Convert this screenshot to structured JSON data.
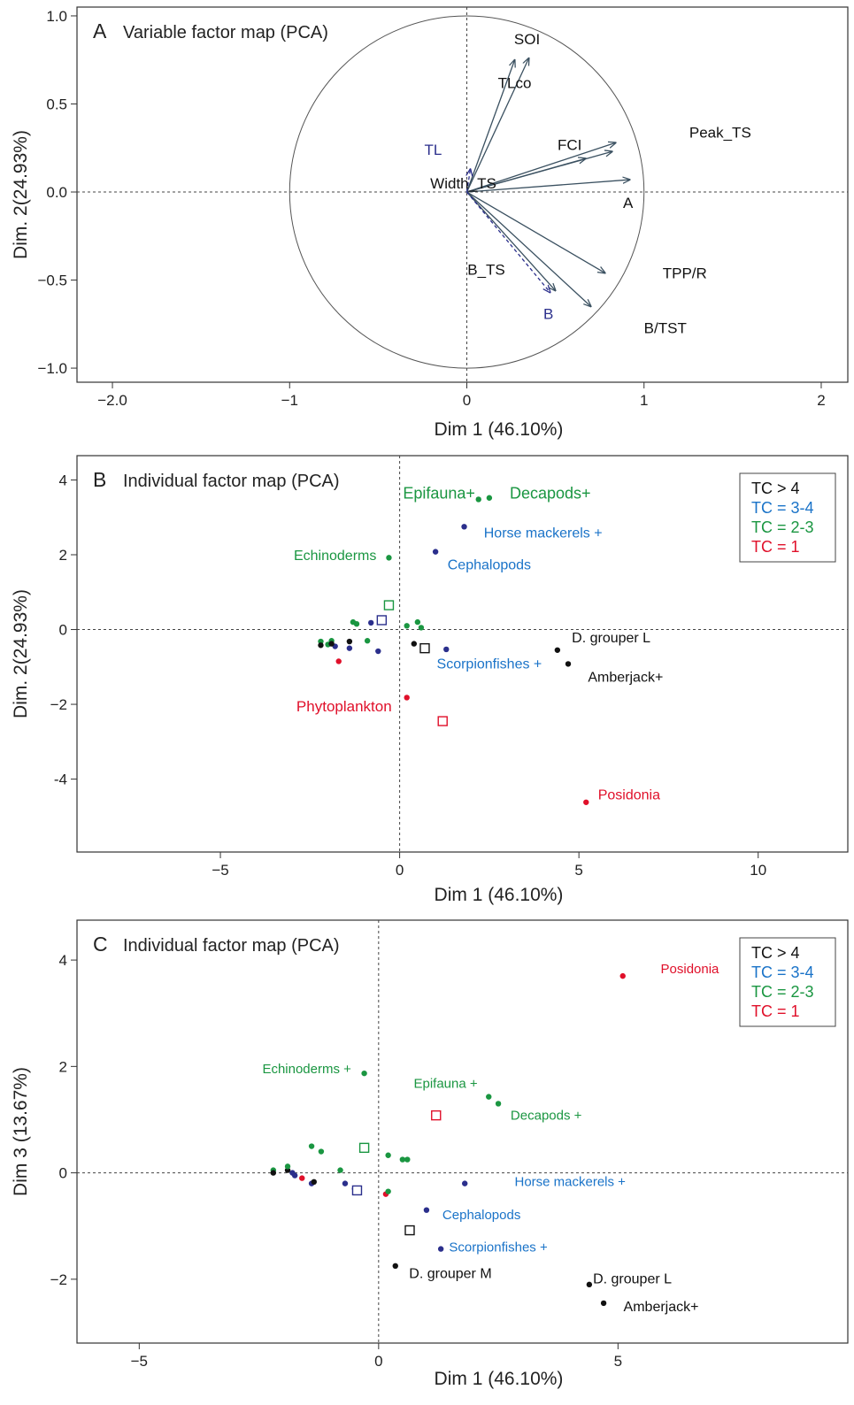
{
  "colors": {
    "tc_gt4": "#111111",
    "tc_3_4": "#1a73c8",
    "tc_2_3": "#1a9641",
    "tc_1": "#e0102a",
    "navy": "#2b2f8c",
    "arrow": "#3a5060"
  },
  "chart_data": [
    {
      "panel": "A",
      "type": "scatter",
      "title": "Variable factor map (PCA)",
      "xlabel": "Dim 1 (46.10%)",
      "ylabel": "Dim. 2(24.93%)",
      "xlim": [
        -2.2,
        2.15
      ],
      "ylim": [
        -1.08,
        1.05
      ],
      "xticks": [
        {
          "v": -2,
          "t": "−2.0"
        },
        {
          "v": -1,
          "t": "−1"
        },
        {
          "v": 0,
          "t": "0"
        },
        {
          "v": 1,
          "t": "1"
        },
        {
          "v": 2,
          "t": "2"
        }
      ],
      "yticks": [
        {
          "v": -1,
          "t": "−1.0"
        },
        {
          "v": -0.5,
          "t": "−0.5"
        },
        {
          "v": 0,
          "t": "0.0"
        },
        {
          "v": 0.5,
          "t": "0.5"
        },
        {
          "v": 1,
          "t": "1.0"
        }
      ],
      "circle_radius": 1,
      "arrows": [
        {
          "x": 0.27,
          "y": 0.75,
          "c": "arrow"
        },
        {
          "x": 0.35,
          "y": 0.76,
          "c": "arrow"
        },
        {
          "x": 0.84,
          "y": 0.28,
          "c": "arrow"
        },
        {
          "x": 0.82,
          "y": 0.23,
          "c": "arrow"
        },
        {
          "x": 0.67,
          "y": 0.19,
          "c": "arrow"
        },
        {
          "x": 0.92,
          "y": 0.07,
          "c": "arrow"
        },
        {
          "x": 0.78,
          "y": -0.46,
          "c": "arrow"
        },
        {
          "x": 0.7,
          "y": -0.65,
          "c": "arrow"
        },
        {
          "x": 0.5,
          "y": -0.56,
          "c": "arrow"
        },
        {
          "x": 0.47,
          "y": -0.57,
          "c": "navy",
          "dashed": true
        },
        {
          "x": 0.02,
          "y": 0.13,
          "c": "navy",
          "dashed": true
        }
      ],
      "labels": [
        {
          "text": "SOI",
          "x": 0.34,
          "y": 0.87,
          "c": "tc_gt4"
        },
        {
          "text": "TLco",
          "x": 0.27,
          "y": 0.62,
          "c": "tc_gt4"
        },
        {
          "text": "FCI",
          "x": 0.58,
          "y": 0.27,
          "c": "tc_gt4"
        },
        {
          "text": "Peak_TS",
          "x": 1.43,
          "y": 0.34,
          "c": "tc_gt4"
        },
        {
          "text": "TL",
          "x": -0.19,
          "y": 0.24,
          "c": "navy"
        },
        {
          "text": "Width_TS",
          "x": -0.02,
          "y": 0.05,
          "c": "tc_gt4"
        },
        {
          "text": "A",
          "x": 0.91,
          "y": -0.06,
          "c": "tc_gt4"
        },
        {
          "text": "B_TS",
          "x": 0.11,
          "y": -0.44,
          "c": "tc_gt4"
        },
        {
          "text": "TPP/R",
          "x": 1.23,
          "y": -0.46,
          "c": "tc_gt4"
        },
        {
          "text": "B",
          "x": 0.46,
          "y": -0.69,
          "c": "navy"
        },
        {
          "text": "B/TST",
          "x": 1.12,
          "y": -0.77,
          "c": "tc_gt4"
        }
      ]
    },
    {
      "panel": "B",
      "type": "scatter",
      "title": "Individual factor map (PCA)",
      "xlabel": "Dim 1 (46.10%)",
      "ylabel": "Dim. 2(24.93%)",
      "xlim": [
        -9.0,
        12.5
      ],
      "ylim": [
        -5.95,
        4.65
      ],
      "xticks": [
        {
          "v": -5,
          "t": "−5"
        },
        {
          "v": 0,
          "t": "0"
        },
        {
          "v": 5,
          "t": "5"
        },
        {
          "v": 10,
          "t": "10"
        }
      ],
      "yticks": [
        {
          "v": -4,
          "t": "-4"
        },
        {
          "v": -2,
          "t": "−2"
        },
        {
          "v": 0,
          "t": "0"
        },
        {
          "v": 2,
          "t": "2"
        },
        {
          "v": 4,
          "t": "4"
        }
      ],
      "legend": [
        "TC > 4",
        "TC = 3-4",
        "TC = 2-3",
        "TC = 1"
      ],
      "points": [
        {
          "x": 2.2,
          "y": 3.48,
          "c": "tc_2_3"
        },
        {
          "x": 2.5,
          "y": 3.52,
          "c": "tc_2_3"
        },
        {
          "x": 1.8,
          "y": 2.75,
          "c": "navy"
        },
        {
          "x": 1.0,
          "y": 2.08,
          "c": "navy"
        },
        {
          "x": -0.3,
          "y": 1.92,
          "c": "tc_2_3"
        },
        {
          "x": -2.2,
          "y": -0.32,
          "c": "tc_2_3"
        },
        {
          "x": -1.9,
          "y": -0.3,
          "c": "tc_2_3"
        },
        {
          "x": -1.8,
          "y": -0.45,
          "c": "navy"
        },
        {
          "x": -2.0,
          "y": -0.4,
          "c": "tc_2_3"
        },
        {
          "x": -2.2,
          "y": -0.42,
          "c": "tc_gt4"
        },
        {
          "x": -1.9,
          "y": -0.38,
          "c": "tc_gt4"
        },
        {
          "x": -1.4,
          "y": -0.32,
          "c": "tc_gt4"
        },
        {
          "x": -1.4,
          "y": -0.5,
          "c": "navy"
        },
        {
          "x": -1.3,
          "y": 0.2,
          "c": "tc_2_3"
        },
        {
          "x": -1.2,
          "y": 0.15,
          "c": "tc_2_3"
        },
        {
          "x": -0.8,
          "y": 0.18,
          "c": "navy"
        },
        {
          "x": -0.9,
          "y": -0.3,
          "c": "tc_2_3"
        },
        {
          "x": -0.6,
          "y": -0.58,
          "c": "navy"
        },
        {
          "x": -1.7,
          "y": -0.85,
          "c": "tc_1"
        },
        {
          "x": 0.2,
          "y": 0.1,
          "c": "tc_2_3"
        },
        {
          "x": 0.5,
          "y": 0.2,
          "c": "tc_2_3"
        },
        {
          "x": 0.6,
          "y": 0.05,
          "c": "tc_2_3"
        },
        {
          "x": 0.4,
          "y": -0.38,
          "c": "tc_gt4"
        },
        {
          "x": 1.3,
          "y": -0.53,
          "c": "navy"
        },
        {
          "x": 4.4,
          "y": -0.55,
          "c": "tc_gt4"
        },
        {
          "x": 4.7,
          "y": -0.92,
          "c": "tc_gt4"
        },
        {
          "x": 0.2,
          "y": -1.82,
          "c": "tc_1"
        },
        {
          "x": 5.2,
          "y": -4.62,
          "c": "tc_1"
        }
      ],
      "squares": [
        {
          "x": -0.3,
          "y": 0.65,
          "c": "tc_2_3"
        },
        {
          "x": -0.5,
          "y": 0.25,
          "c": "navy"
        },
        {
          "x": 0.7,
          "y": -0.5,
          "c": "tc_gt4"
        },
        {
          "x": 1.2,
          "y": -2.45,
          "c": "tc_1"
        }
      ],
      "labels": [
        {
          "text": "Epifauna+",
          "x": 1.1,
          "y": 3.65,
          "c": "tc_2_3",
          "size": 18
        },
        {
          "text": "Decapods+",
          "x": 4.2,
          "y": 3.65,
          "c": "tc_2_3",
          "size": 18
        },
        {
          "text": "Horse mackerels +",
          "x": 4.0,
          "y": 2.6,
          "c": "tc_3_4",
          "size": 16
        },
        {
          "text": "Echinoderms",
          "x": -1.8,
          "y": 2.0,
          "c": "tc_2_3",
          "size": 16
        },
        {
          "text": "Cephalopods",
          "x": 2.5,
          "y": 1.75,
          "c": "tc_3_4",
          "size": 16
        },
        {
          "text": "D. grouper L",
          "x": 5.9,
          "y": -0.2,
          "c": "tc_gt4",
          "size": 16
        },
        {
          "text": "Scorpionfishes +",
          "x": 2.5,
          "y": -0.9,
          "c": "tc_3_4",
          "size": 16
        },
        {
          "text": "Amberjack+",
          "x": 6.3,
          "y": -1.25,
          "c": "tc_gt4",
          "size": 16
        },
        {
          "text": "Phytoplankton",
          "x": -1.55,
          "y": -2.05,
          "c": "tc_1",
          "size": 17
        },
        {
          "text": "Posidonia",
          "x": 6.4,
          "y": -4.4,
          "c": "tc_1",
          "size": 16
        }
      ]
    },
    {
      "panel": "C",
      "type": "scatter",
      "title": "Individual factor map (PCA)",
      "xlabel": "Dim 1 (46.10%)",
      "ylabel": "Dim 3 (13.67%)",
      "xlim": [
        -6.3,
        9.8
      ],
      "ylim": [
        -3.2,
        4.75
      ],
      "xticks": [
        {
          "v": -5,
          "t": "−5"
        },
        {
          "v": 0,
          "t": "0"
        },
        {
          "v": 5,
          "t": "5"
        }
      ],
      "yticks": [
        {
          "v": -2,
          "t": "−2"
        },
        {
          "v": 0,
          "t": "0"
        },
        {
          "v": 2,
          "t": "2"
        },
        {
          "v": 4,
          "t": "4"
        }
      ],
      "legend": [
        "TC > 4",
        "TC = 3-4",
        "TC = 2-3",
        "TC = 1"
      ],
      "points": [
        {
          "x": 5.1,
          "y": 3.7,
          "c": "tc_1"
        },
        {
          "x": -0.3,
          "y": 1.87,
          "c": "tc_2_3"
        },
        {
          "x": 2.3,
          "y": 1.43,
          "c": "tc_2_3"
        },
        {
          "x": 2.5,
          "y": 1.3,
          "c": "tc_2_3"
        },
        {
          "x": -1.4,
          "y": 0.5,
          "c": "tc_2_3"
        },
        {
          "x": -1.2,
          "y": 0.4,
          "c": "tc_2_3"
        },
        {
          "x": 0.2,
          "y": 0.33,
          "c": "tc_2_3"
        },
        {
          "x": 0.5,
          "y": 0.25,
          "c": "tc_2_3"
        },
        {
          "x": 0.6,
          "y": 0.25,
          "c": "tc_2_3"
        },
        {
          "x": -2.2,
          "y": 0.05,
          "c": "tc_2_3"
        },
        {
          "x": -2.2,
          "y": 0.0,
          "c": "tc_gt4"
        },
        {
          "x": -1.9,
          "y": 0.05,
          "c": "tc_gt4"
        },
        {
          "x": -1.9,
          "y": 0.12,
          "c": "tc_2_3"
        },
        {
          "x": -1.8,
          "y": 0.0,
          "c": "navy"
        },
        {
          "x": -1.75,
          "y": -0.05,
          "c": "navy"
        },
        {
          "x": -1.6,
          "y": -0.1,
          "c": "tc_1"
        },
        {
          "x": -1.4,
          "y": -0.2,
          "c": "navy"
        },
        {
          "x": -1.35,
          "y": -0.17,
          "c": "tc_gt4"
        },
        {
          "x": -0.8,
          "y": 0.05,
          "c": "tc_2_3"
        },
        {
          "x": -0.7,
          "y": -0.2,
          "c": "navy"
        },
        {
          "x": -0.5,
          "y": -0.3,
          "c": "navy"
        },
        {
          "x": -0.45,
          "y": -0.3,
          "c": "tc_gt4"
        },
        {
          "x": 0.15,
          "y": -0.4,
          "c": "tc_1"
        },
        {
          "x": 0.2,
          "y": -0.35,
          "c": "tc_2_3"
        },
        {
          "x": 1.8,
          "y": -0.2,
          "c": "navy"
        },
        {
          "x": 1.0,
          "y": -0.7,
          "c": "navy"
        },
        {
          "x": 1.3,
          "y": -1.43,
          "c": "navy"
        },
        {
          "x": 0.35,
          "y": -1.75,
          "c": "tc_gt4"
        },
        {
          "x": 4.4,
          "y": -2.1,
          "c": "tc_gt4"
        },
        {
          "x": 4.7,
          "y": -2.45,
          "c": "tc_gt4"
        }
      ],
      "squares": [
        {
          "x": -0.3,
          "y": 0.47,
          "c": "tc_2_3"
        },
        {
          "x": -0.45,
          "y": -0.33,
          "c": "navy"
        },
        {
          "x": 0.65,
          "y": -1.08,
          "c": "tc_gt4"
        },
        {
          "x": 1.2,
          "y": 1.08,
          "c": "tc_1"
        }
      ],
      "labels": [
        {
          "text": "Posidonia",
          "x": 6.5,
          "y": 3.85,
          "c": "tc_1",
          "size": 15
        },
        {
          "text": "Echinoderms +",
          "x": -1.5,
          "y": 1.97,
          "c": "tc_2_3",
          "size": 15
        },
        {
          "text": "Epifauna +",
          "x": 1.4,
          "y": 1.7,
          "c": "tc_2_3",
          "size": 15
        },
        {
          "text": "Decapods +",
          "x": 3.5,
          "y": 1.1,
          "c": "tc_2_3",
          "size": 15
        },
        {
          "text": "Horse mackerels +",
          "x": 4.0,
          "y": -0.15,
          "c": "tc_3_4",
          "size": 15
        },
        {
          "text": "Cephalopods",
          "x": 2.15,
          "y": -0.77,
          "c": "tc_3_4",
          "size": 15
        },
        {
          "text": "Scorpionfishes +",
          "x": 2.5,
          "y": -1.38,
          "c": "tc_3_4",
          "size": 15
        },
        {
          "text": "D. grouper M",
          "x": 1.5,
          "y": -1.88,
          "c": "tc_gt4",
          "size": 16
        },
        {
          "text": "D. grouper L",
          "x": 5.3,
          "y": -1.98,
          "c": "tc_gt4",
          "size": 16
        },
        {
          "text": "Amberjack+",
          "x": 5.9,
          "y": -2.5,
          "c": "tc_gt4",
          "size": 16
        }
      ]
    }
  ]
}
